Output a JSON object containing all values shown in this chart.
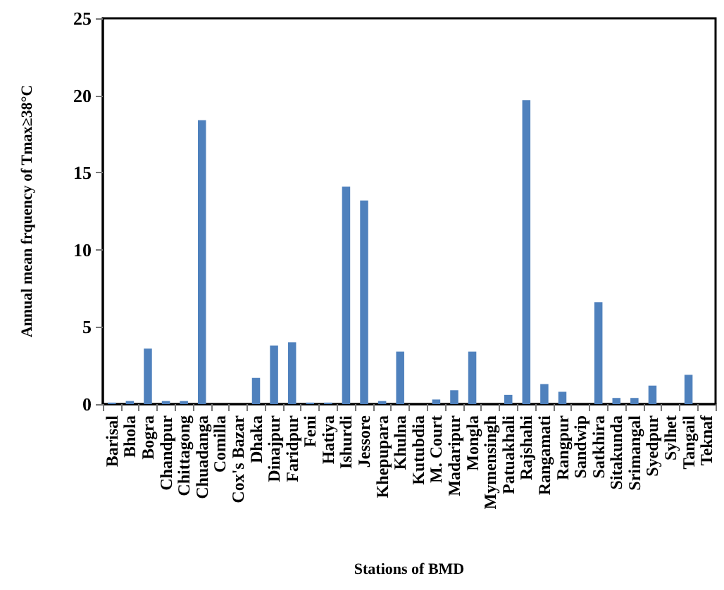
{
  "chart_data": {
    "type": "bar",
    "xlabel": "Stations of BMD",
    "ylabel": "Annual mean frquency of Tmax≥38°C",
    "categories": [
      "Barisal",
      "Bhola",
      "Bogra",
      "Chandpur",
      "Chittagong",
      "Chuadanga",
      "Comilla",
      "Cox's Bazar",
      "Dhaka",
      "Dinajpur",
      "Faridpur",
      "Feni",
      "Hatiya",
      "Ishurdi",
      "Jessore",
      "Khepupara",
      "Khulna",
      "Kutubdia",
      "M. Court",
      "Madaripur",
      "Mongla",
      "Mymensingh",
      "Patuakhali",
      "Rajshahi",
      "Rangamati",
      "Rangpur",
      "Sandwip",
      "Satkhira",
      "Sitakunda",
      "Srimangal",
      "Syedpur",
      "Sylhet",
      "Tangail",
      "Teknaf"
    ],
    "values": [
      0.1,
      0.2,
      3.6,
      0.2,
      0.2,
      18.4,
      0,
      0,
      1.7,
      3.8,
      4.0,
      0.1,
      0.1,
      14.1,
      13.2,
      0.2,
      3.4,
      0,
      0.3,
      0.9,
      3.4,
      0,
      0.6,
      19.7,
      1.3,
      0.8,
      0,
      6.6,
      0.4,
      0.4,
      1.2,
      0,
      1.9,
      0
    ],
    "color": "#4f81bd",
    "ylim": [
      0,
      25
    ],
    "yticks": [
      0,
      5,
      10,
      15,
      20,
      25
    ],
    "grid": false
  }
}
